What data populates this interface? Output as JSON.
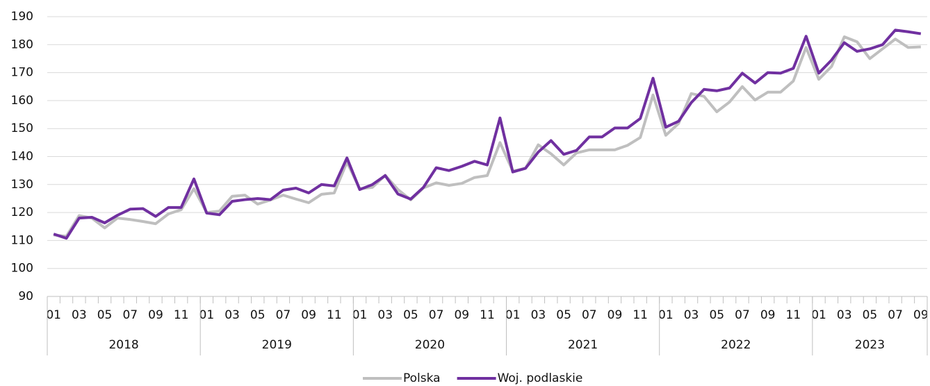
{
  "chart_data": {
    "type": "line",
    "categories": [
      "01",
      null,
      "03",
      null,
      "05",
      null,
      "07",
      null,
      "09",
      null,
      "11",
      null,
      "01",
      null,
      "03",
      null,
      "05",
      null,
      "07",
      null,
      "09",
      null,
      "11",
      null,
      "01",
      null,
      "03",
      null,
      "05",
      null,
      "07",
      null,
      "09",
      null,
      "11",
      null,
      "01",
      null,
      "03",
      null,
      "05",
      null,
      "07",
      null,
      "09",
      null,
      "11",
      null,
      "01",
      null,
      "03",
      null,
      "05",
      null,
      "07",
      null,
      "09",
      null,
      "11",
      null,
      "01",
      null,
      "03",
      null,
      "05",
      null,
      "07",
      null,
      "09"
    ],
    "groups": [
      "2018",
      "2019",
      "2020",
      "2021",
      "2022",
      "2023"
    ],
    "series": [
      {
        "name": "Polska",
        "color": "#bfbfbf",
        "values": [
          112,
          111.5,
          118.9,
          118,
          114.5,
          118,
          117.5,
          116.8,
          116,
          119.5,
          121,
          128.5,
          120,
          120.5,
          125.8,
          126.2,
          123,
          124.5,
          126.2,
          124.8,
          123.5,
          126.5,
          127,
          138,
          128.5,
          129,
          133.3,
          128.2,
          124.5,
          128.8,
          130.6,
          129.7,
          130.4,
          132.5,
          133.2,
          145,
          134.8,
          135.8,
          144.2,
          141,
          137,
          141.3,
          142.4,
          142.4,
          142.4,
          144,
          146.8,
          162,
          147.6,
          151.8,
          162.5,
          161.5,
          156,
          159.5,
          165,
          160.2,
          163,
          163,
          167,
          179,
          167.6,
          172.2,
          182.8,
          181,
          175,
          178.5,
          182,
          179,
          179.2
        ]
      },
      {
        "name": "Woj. podlaskie",
        "color": "#7030a0",
        "values": [
          112.3,
          110.8,
          118,
          118.3,
          116.3,
          119,
          121.2,
          121.4,
          118.6,
          121.8,
          121.8,
          132,
          119.8,
          119.2,
          124,
          124.6,
          125,
          124.6,
          128,
          128.7,
          127,
          130,
          129.5,
          139.5,
          128.2,
          130,
          133.2,
          126.6,
          124.8,
          129,
          136,
          135,
          136.5,
          138.3,
          137,
          153.8,
          134.5,
          135.8,
          141.6,
          145.7,
          140.8,
          142.2,
          147,
          147,
          150.2,
          150.2,
          153.6,
          168,
          150.5,
          152.6,
          159.3,
          164,
          163.5,
          164.5,
          169.8,
          166.3,
          170,
          169.8,
          171.5,
          183,
          169.8,
          174.5,
          180.7,
          177.6,
          178.5,
          180,
          185.2,
          184.6,
          183.9
        ]
      }
    ],
    "ylim": [
      90,
      190
    ],
    "yticks": [
      90,
      100,
      110,
      120,
      130,
      140,
      150,
      160,
      170,
      180,
      190
    ],
    "grid": true,
    "legend": "bottom"
  }
}
